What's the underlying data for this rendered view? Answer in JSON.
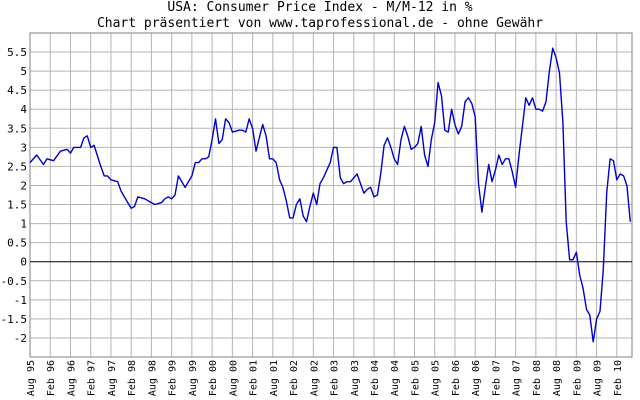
{
  "chart_data": {
    "type": "line",
    "title": "USA: Consumer Price Index - M/M-12 in %",
    "subtitle": "Chart präsentiert von www.taprofessional.de - ohne Gewähr",
    "xlabel": "",
    "ylabel": "",
    "ylim": [
      -2.5,
      6
    ],
    "y_ticks": [
      "5.5",
      "5",
      "4.5",
      "4",
      "3.5",
      "3",
      "2.5",
      "2",
      "1.5",
      "1",
      "0.5",
      "0",
      "-0.5",
      "-1",
      "-1.5",
      "-2"
    ],
    "x_tick_labels": [
      "Aug 95",
      "Feb 96",
      "Aug 96",
      "Feb 97",
      "Aug 97",
      "Feb 98",
      "Aug 98",
      "Feb 99",
      "Aug 99",
      "Feb 00",
      "Aug 00",
      "Feb 01",
      "Aug 01",
      "Feb 02",
      "Aug 02",
      "Feb 03",
      "Aug 03",
      "Feb 04",
      "Aug 04",
      "Feb 05",
      "Aug 05",
      "Feb 06",
      "Aug 06",
      "Feb 07",
      "Aug 07",
      "Feb 08",
      "Aug 08",
      "Feb 09",
      "Aug 09",
      "Feb 10"
    ],
    "grid": true,
    "line_color": "#0000cc",
    "zero_line_color": "#000000",
    "series": [
      {
        "points": [
          [
            "1995-08",
            2.6
          ],
          [
            "1995-10",
            2.8
          ],
          [
            "1995-12",
            2.55
          ],
          [
            "1996-01",
            2.7
          ],
          [
            "1996-03",
            2.65
          ],
          [
            "1996-05",
            2.9
          ],
          [
            "1996-07",
            2.95
          ],
          [
            "1996-08",
            2.85
          ],
          [
            "1996-09",
            3.0
          ],
          [
            "1996-11",
            3.0
          ],
          [
            "1996-12",
            3.25
          ],
          [
            "1997-01",
            3.3
          ],
          [
            "1997-02",
            3.0
          ],
          [
            "1997-03",
            3.05
          ],
          [
            "1997-05",
            2.5
          ],
          [
            "1997-06",
            2.25
          ],
          [
            "1997-07",
            2.25
          ],
          [
            "1997-08",
            2.15
          ],
          [
            "1997-10",
            2.1
          ],
          [
            "1997-11",
            1.85
          ],
          [
            "1997-12",
            1.7
          ],
          [
            "1998-01",
            1.55
          ],
          [
            "1998-02",
            1.4
          ],
          [
            "1998-03",
            1.45
          ],
          [
            "1998-04",
            1.7
          ],
          [
            "1998-06",
            1.65
          ],
          [
            "1998-08",
            1.55
          ],
          [
            "1998-09",
            1.5
          ],
          [
            "1998-11",
            1.55
          ],
          [
            "1998-12",
            1.65
          ],
          [
            "1999-01",
            1.7
          ],
          [
            "1999-02",
            1.65
          ],
          [
            "1999-03",
            1.75
          ],
          [
            "1999-04",
            2.25
          ],
          [
            "1999-05",
            2.1
          ],
          [
            "1999-06",
            1.95
          ],
          [
            "1999-07",
            2.1
          ],
          [
            "1999-08",
            2.25
          ],
          [
            "1999-09",
            2.6
          ],
          [
            "1999-10",
            2.6
          ],
          [
            "1999-11",
            2.7
          ],
          [
            "1999-12",
            2.7
          ],
          [
            "2000-01",
            2.75
          ],
          [
            "2000-02",
            3.2
          ],
          [
            "2000-03",
            3.75
          ],
          [
            "2000-04",
            3.1
          ],
          [
            "2000-05",
            3.2
          ],
          [
            "2000-06",
            3.75
          ],
          [
            "2000-07",
            3.65
          ],
          [
            "2000-08",
            3.4
          ],
          [
            "2000-10",
            3.45
          ],
          [
            "2000-11",
            3.45
          ],
          [
            "2000-12",
            3.4
          ],
          [
            "2001-01",
            3.75
          ],
          [
            "2001-02",
            3.5
          ],
          [
            "2001-03",
            2.9
          ],
          [
            "2001-04",
            3.25
          ],
          [
            "2001-05",
            3.6
          ],
          [
            "2001-06",
            3.3
          ],
          [
            "2001-07",
            2.7
          ],
          [
            "2001-08",
            2.7
          ],
          [
            "2001-09",
            2.6
          ],
          [
            "2001-10",
            2.15
          ],
          [
            "2001-11",
            1.95
          ],
          [
            "2001-12",
            1.6
          ],
          [
            "2002-01",
            1.15
          ],
          [
            "2002-02",
            1.15
          ],
          [
            "2002-03",
            1.5
          ],
          [
            "2002-04",
            1.65
          ],
          [
            "2002-05",
            1.2
          ],
          [
            "2002-06",
            1.05
          ],
          [
            "2002-07",
            1.45
          ],
          [
            "2002-08",
            1.8
          ],
          [
            "2002-09",
            1.5
          ],
          [
            "2002-10",
            2.05
          ],
          [
            "2002-11",
            2.2
          ],
          [
            "2002-12",
            2.4
          ],
          [
            "2003-01",
            2.6
          ],
          [
            "2003-02",
            3.0
          ],
          [
            "2003-03",
            3.0
          ],
          [
            "2003-04",
            2.2
          ],
          [
            "2003-05",
            2.05
          ],
          [
            "2003-06",
            2.1
          ],
          [
            "2003-07",
            2.1
          ],
          [
            "2003-08",
            2.2
          ],
          [
            "2003-09",
            2.3
          ],
          [
            "2003-10",
            2.05
          ],
          [
            "2003-11",
            1.8
          ],
          [
            "2003-12",
            1.9
          ],
          [
            "2004-01",
            1.95
          ],
          [
            "2004-02",
            1.7
          ],
          [
            "2004-03",
            1.75
          ],
          [
            "2004-04",
            2.3
          ],
          [
            "2004-05",
            3.05
          ],
          [
            "2004-06",
            3.25
          ],
          [
            "2004-07",
            3.0
          ],
          [
            "2004-08",
            2.7
          ],
          [
            "2004-09",
            2.55
          ],
          [
            "2004-10",
            3.2
          ],
          [
            "2004-11",
            3.55
          ],
          [
            "2004-12",
            3.3
          ],
          [
            "2005-01",
            2.95
          ],
          [
            "2005-02",
            3.0
          ],
          [
            "2005-03",
            3.1
          ],
          [
            "2005-04",
            3.55
          ],
          [
            "2005-05",
            2.8
          ],
          [
            "2005-06",
            2.5
          ],
          [
            "2005-07",
            3.2
          ],
          [
            "2005-08",
            3.65
          ],
          [
            "2005-09",
            4.7
          ],
          [
            "2005-10",
            4.35
          ],
          [
            "2005-11",
            3.45
          ],
          [
            "2005-12",
            3.4
          ],
          [
            "2006-01",
            4.0
          ],
          [
            "2006-02",
            3.6
          ],
          [
            "2006-03",
            3.35
          ],
          [
            "2006-04",
            3.55
          ],
          [
            "2006-05",
            4.2
          ],
          [
            "2006-06",
            4.3
          ],
          [
            "2006-07",
            4.15
          ],
          [
            "2006-08",
            3.8
          ],
          [
            "2006-09",
            2.05
          ],
          [
            "2006-10",
            1.3
          ],
          [
            "2006-11",
            1.95
          ],
          [
            "2006-12",
            2.55
          ],
          [
            "2007-01",
            2.1
          ],
          [
            "2007-02",
            2.4
          ],
          [
            "2007-03",
            2.8
          ],
          [
            "2007-04",
            2.55
          ],
          [
            "2007-05",
            2.7
          ],
          [
            "2007-06",
            2.7
          ],
          [
            "2007-07",
            2.35
          ],
          [
            "2007-08",
            1.95
          ],
          [
            "2007-09",
            2.8
          ],
          [
            "2007-10",
            3.55
          ],
          [
            "2007-11",
            4.3
          ],
          [
            "2007-12",
            4.1
          ],
          [
            "2008-01",
            4.3
          ],
          [
            "2008-02",
            4.0
          ],
          [
            "2008-03",
            4.0
          ],
          [
            "2008-04",
            3.95
          ],
          [
            "2008-05",
            4.2
          ],
          [
            "2008-06",
            5.0
          ],
          [
            "2008-07",
            5.6
          ],
          [
            "2008-08",
            5.35
          ],
          [
            "2008-09",
            4.95
          ],
          [
            "2008-10",
            3.65
          ],
          [
            "2008-11",
            1.05
          ],
          [
            "2008-12",
            0.05
          ],
          [
            "2009-01",
            0.05
          ],
          [
            "2009-02",
            0.25
          ],
          [
            "2009-03",
            -0.35
          ],
          [
            "2009-04",
            -0.7
          ],
          [
            "2009-05",
            -1.25
          ],
          [
            "2009-06",
            -1.4
          ],
          [
            "2009-07",
            -2.1
          ],
          [
            "2009-08",
            -1.5
          ],
          [
            "2009-09",
            -1.3
          ],
          [
            "2009-10",
            -0.2
          ],
          [
            "2009-11",
            1.8
          ],
          [
            "2009-12",
            2.7
          ],
          [
            "2010-01",
            2.65
          ],
          [
            "2010-02",
            2.15
          ],
          [
            "2010-03",
            2.3
          ],
          [
            "2010-04",
            2.25
          ],
          [
            "2010-05",
            2.0
          ],
          [
            "2010-06",
            1.05
          ]
        ]
      }
    ]
  }
}
